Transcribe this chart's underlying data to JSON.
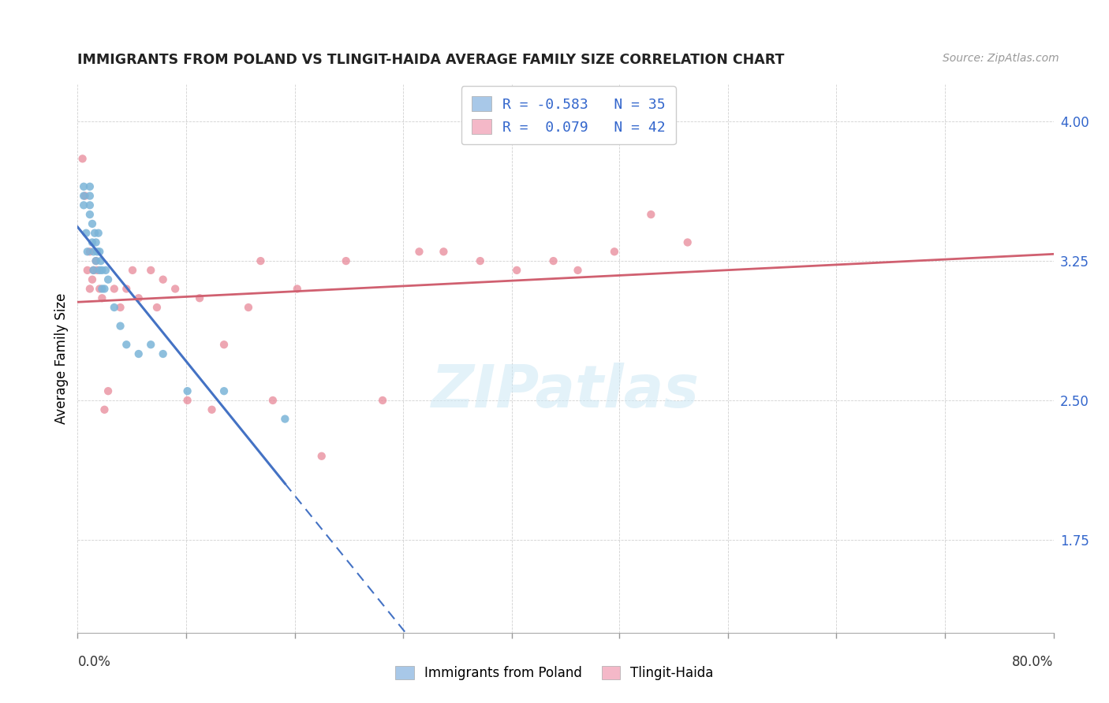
{
  "title": "IMMIGRANTS FROM POLAND VS TLINGIT-HAIDA AVERAGE FAMILY SIZE CORRELATION CHART",
  "source": "Source: ZipAtlas.com",
  "ylabel": "Average Family Size",
  "yticks": [
    1.75,
    2.5,
    3.25,
    4.0
  ],
  "xlim": [
    0.0,
    0.8
  ],
  "ylim": [
    1.25,
    4.2
  ],
  "watermark": "ZIPatlas",
  "legend1_label": "R = -0.583   N = 35",
  "legend2_label": "R =  0.079   N = 42",
  "legend1_color": "#a8c8e8",
  "legend2_color": "#f4b8c8",
  "series1_color": "#7ab4d8",
  "series2_color": "#e88898",
  "trendline1_color": "#4472c4",
  "trendline2_color": "#d06070",
  "poland_x": [
    0.005,
    0.005,
    0.005,
    0.007,
    0.008,
    0.01,
    0.01,
    0.01,
    0.01,
    0.012,
    0.012,
    0.013,
    0.013,
    0.014,
    0.015,
    0.015,
    0.016,
    0.017,
    0.018,
    0.018,
    0.019,
    0.02,
    0.02,
    0.022,
    0.023,
    0.025,
    0.03,
    0.035,
    0.04,
    0.05,
    0.06,
    0.07,
    0.09,
    0.12,
    0.17
  ],
  "poland_y": [
    3.55,
    3.6,
    3.65,
    3.4,
    3.3,
    3.5,
    3.55,
    3.6,
    3.65,
    3.35,
    3.45,
    3.2,
    3.3,
    3.4,
    3.25,
    3.35,
    3.3,
    3.4,
    3.2,
    3.3,
    3.25,
    3.1,
    3.2,
    3.1,
    3.2,
    3.15,
    3.0,
    2.9,
    2.8,
    2.75,
    2.8,
    2.75,
    2.55,
    2.55,
    2.4
  ],
  "tlingit_x": [
    0.004,
    0.006,
    0.008,
    0.01,
    0.01,
    0.012,
    0.013,
    0.015,
    0.016,
    0.018,
    0.02,
    0.022,
    0.025,
    0.03,
    0.035,
    0.04,
    0.045,
    0.05,
    0.06,
    0.065,
    0.07,
    0.08,
    0.09,
    0.1,
    0.11,
    0.12,
    0.14,
    0.15,
    0.16,
    0.18,
    0.2,
    0.22,
    0.25,
    0.28,
    0.3,
    0.33,
    0.36,
    0.39,
    0.41,
    0.44,
    0.47,
    0.5
  ],
  "tlingit_y": [
    3.8,
    3.6,
    3.2,
    3.1,
    3.3,
    3.15,
    3.2,
    3.25,
    3.2,
    3.1,
    3.05,
    2.45,
    2.55,
    3.1,
    3.0,
    3.1,
    3.2,
    3.05,
    3.2,
    3.0,
    3.15,
    3.1,
    2.5,
    3.05,
    2.45,
    2.8,
    3.0,
    3.25,
    2.5,
    3.1,
    2.2,
    3.25,
    2.5,
    3.3,
    3.3,
    3.25,
    3.2,
    3.25,
    3.2,
    3.3,
    3.5,
    3.35
  ],
  "xtick_positions": [
    0.0,
    0.089,
    0.178,
    0.267,
    0.356,
    0.444,
    0.533,
    0.622,
    0.711,
    0.8
  ]
}
